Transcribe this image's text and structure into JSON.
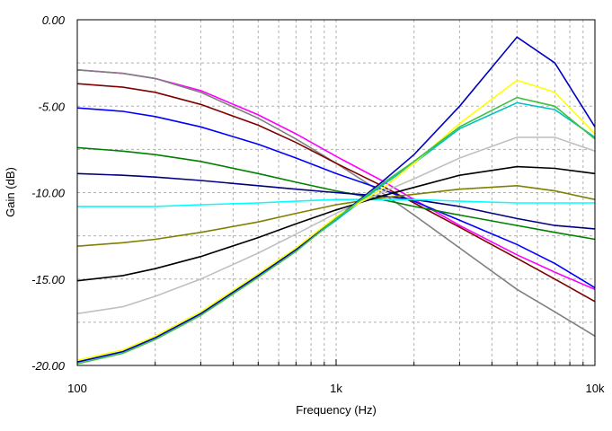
{
  "chart_data": {
    "type": "line",
    "x_label": "Frequency (Hz)",
    "y_label": "Gain (dB)",
    "x": [
      100,
      150,
      200,
      300,
      500,
      700,
      1000,
      1500,
      2000,
      3000,
      5000,
      7000,
      10000
    ],
    "xlim": [
      100,
      10000
    ],
    "xscale": "log",
    "xticks": [
      100,
      {
        "value": 1000,
        "label": "1k"
      },
      {
        "value": 10000,
        "label": "10k"
      }
    ],
    "ylim": [
      -20,
      0
    ],
    "yticks": [
      {
        "value": -20,
        "label": "-20.00"
      },
      {
        "value": -15,
        "label": "-15.00"
      },
      {
        "value": -10,
        "label": "-10.00"
      },
      {
        "value": -5,
        "label": "-5.00"
      },
      {
        "value": 0,
        "label": "0.00"
      }
    ],
    "grid": true,
    "series": [
      {
        "color": "#ff00ff",
        "values": [
          -2.9,
          -3.1,
          -3.4,
          -4.1,
          -5.5,
          -6.6,
          -7.9,
          -9.3,
          -10.4,
          -11.9,
          -13.6,
          -14.6,
          -15.6
        ]
      },
      {
        "color": "#808080",
        "values": [
          -2.9,
          -3.1,
          -3.4,
          -4.2,
          -5.7,
          -6.9,
          -8.3,
          -10.0,
          -11.3,
          -13.2,
          -15.6,
          -16.9,
          -18.3
        ]
      },
      {
        "color": "#800000",
        "values": [
          -3.7,
          -3.9,
          -4.2,
          -4.9,
          -6.1,
          -7.1,
          -8.3,
          -9.6,
          -10.6,
          -12.0,
          -13.8,
          -15.0,
          -16.3
        ]
      },
      {
        "color": "#0000ff",
        "values": [
          -5.1,
          -5.3,
          -5.6,
          -6.2,
          -7.2,
          -8.0,
          -8.9,
          -9.8,
          -10.5,
          -11.6,
          -13.0,
          -14.1,
          -15.5
        ]
      },
      {
        "color": "#008000",
        "values": [
          -7.4,
          -7.6,
          -7.8,
          -8.2,
          -8.9,
          -9.4,
          -9.9,
          -10.4,
          -10.8,
          -11.3,
          -11.9,
          -12.3,
          -12.7
        ]
      },
      {
        "color": "#000080",
        "values": [
          -8.9,
          -9.0,
          -9.1,
          -9.3,
          -9.6,
          -9.8,
          -10.0,
          -10.2,
          -10.4,
          -10.8,
          -11.5,
          -11.9,
          -12.1
        ]
      },
      {
        "color": "#00ffff",
        "values": [
          -10.8,
          -10.8,
          -10.8,
          -10.7,
          -10.6,
          -10.5,
          -10.4,
          -10.4,
          -10.4,
          -10.5,
          -10.6,
          -10.6,
          -10.6
        ]
      },
      {
        "color": "#808000",
        "values": [
          -13.1,
          -12.9,
          -12.7,
          -12.3,
          -11.7,
          -11.2,
          -10.7,
          -10.3,
          -10.1,
          -9.8,
          -9.6,
          -9.9,
          -10.4
        ]
      },
      {
        "color": "#000000",
        "values": [
          -15.1,
          -14.8,
          -14.4,
          -13.7,
          -12.6,
          -11.8,
          -11.0,
          -10.2,
          -9.7,
          -9.0,
          -8.5,
          -8.6,
          -8.9
        ]
      },
      {
        "color": "#c0c0c0",
        "values": [
          -17.0,
          -16.6,
          -16.0,
          -15.0,
          -13.5,
          -12.4,
          -11.2,
          -10.0,
          -9.2,
          -8.0,
          -6.8,
          -6.8,
          -7.6
        ]
      },
      {
        "color": "#00c0c0",
        "values": [
          -19.8,
          -19.2,
          -18.4,
          -17.0,
          -14.8,
          -13.3,
          -11.6,
          -9.6,
          -8.3,
          -6.3,
          -4.8,
          -5.2,
          -6.8
        ]
      },
      {
        "color": "#0000c0",
        "values": [
          -19.8,
          -19.2,
          -18.4,
          -17.0,
          -14.8,
          -13.3,
          -11.5,
          -9.4,
          -7.8,
          -5.0,
          -1.0,
          -2.5,
          -6.2
        ]
      },
      {
        "color": "#ffff00",
        "values": [
          -19.7,
          -19.1,
          -18.3,
          -16.9,
          -14.7,
          -13.2,
          -11.4,
          -9.8,
          -8.3,
          -6.0,
          -3.5,
          -4.2,
          -6.6
        ]
      },
      {
        "color": "#40c040",
        "values": [
          -19.9,
          -19.3,
          -18.5,
          -17.1,
          -14.9,
          -13.4,
          -11.5,
          -9.5,
          -8.2,
          -6.2,
          -4.5,
          -5.0,
          -6.9
        ]
      }
    ]
  }
}
